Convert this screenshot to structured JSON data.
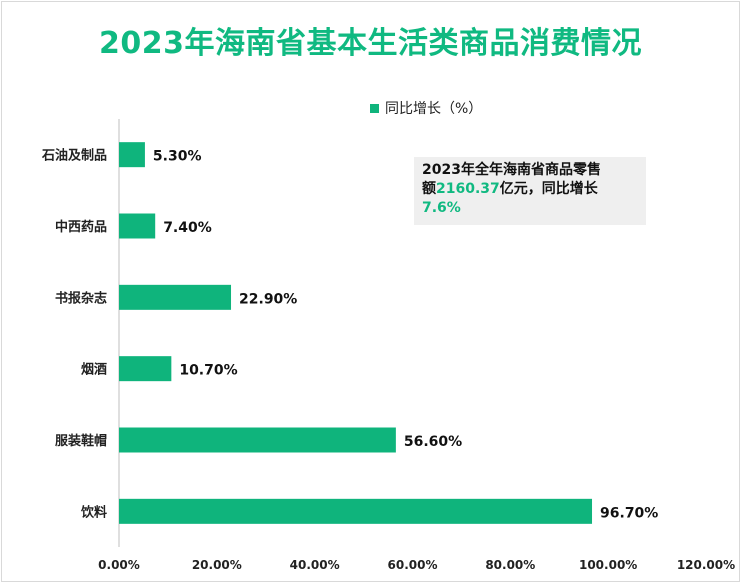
{
  "title": "2023年海南省基本生活类商品消费情况",
  "legend": {
    "label": "同比增长（%）"
  },
  "note": {
    "line1": "2023年全年海南省商品零售",
    "line2_prefix": "额",
    "amount": "2160.37",
    "line2_suffix": "亿元，同比增长",
    "growth": "7.6%"
  },
  "colors": {
    "bar": "#0fb47c",
    "title": "#10b981"
  },
  "chart_data": {
    "type": "bar",
    "orientation": "horizontal",
    "categories": [
      "石油及制品",
      "中西药品",
      "书报杂志",
      "烟酒",
      "服装鞋帽",
      "饮料"
    ],
    "series": [
      {
        "name": "同比增长（%）",
        "values": [
          5.3,
          7.4,
          22.9,
          10.7,
          56.6,
          96.7
        ]
      }
    ],
    "data_labels": [
      "5.30%",
      "7.40%",
      "22.90%",
      "10.70%",
      "56.60%",
      "96.70%"
    ],
    "x_ticks": [
      "0.00%",
      "20.00%",
      "40.00%",
      "60.00%",
      "80.00%",
      "100.00%",
      "120.00%"
    ],
    "xlim": [
      0,
      120
    ],
    "legend_position": "top",
    "grid": false
  }
}
